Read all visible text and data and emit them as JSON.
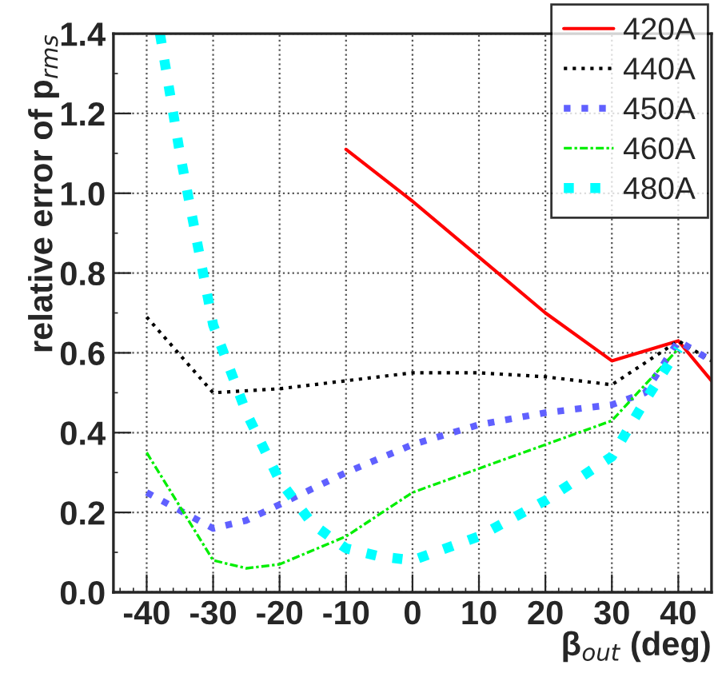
{
  "chart_data": {
    "type": "line",
    "xlabel": "β$_{out}$ (deg)",
    "ylabel": "relative error of p$_{rms}$",
    "xlim": [
      -45,
      45
    ],
    "ylim": [
      0,
      1.4
    ],
    "xticks": [
      -40,
      -30,
      -20,
      -10,
      0,
      10,
      20,
      30,
      40
    ],
    "yticks": [
      {
        "value": 0,
        "label": "0.0"
      },
      {
        "value": 0.2,
        "label": "0.2"
      },
      {
        "value": 0.4,
        "label": "0.4"
      },
      {
        "value": 0.6,
        "label": "0.6"
      },
      {
        "value": 0.8,
        "label": "0.8"
      },
      {
        "value": 1.0,
        "label": "1.0"
      },
      {
        "value": 1.2,
        "label": "1.2"
      },
      {
        "value": 1.4,
        "label": "1.4"
      }
    ],
    "grid": true,
    "legend": "top right",
    "marker": "none",
    "series": [
      {
        "name": "420A",
        "color": "#ff0000",
        "line_style": "solid",
        "x": [
          -10,
          0,
          10,
          20,
          30,
          40,
          45
        ],
        "values": [
          1.11,
          0.98,
          0.84,
          0.7,
          0.58,
          0.63,
          0.53
        ]
      },
      {
        "name": "440A",
        "color": "#000000",
        "line_style": "dotted",
        "x": [
          -40,
          -30,
          -20,
          -10,
          0,
          10,
          20,
          30,
          40,
          45
        ],
        "values": [
          0.69,
          0.5,
          0.51,
          0.53,
          0.55,
          0.55,
          0.54,
          0.52,
          0.63,
          0.58
        ]
      },
      {
        "name": "450A",
        "color": "#6060ff",
        "line_style": "dotted",
        "x": [
          -40,
          -30,
          -25,
          -20,
          -10,
          0,
          10,
          20,
          30,
          35,
          40,
          45
        ],
        "values": [
          0.25,
          0.16,
          0.18,
          0.22,
          0.3,
          0.37,
          0.42,
          0.45,
          0.47,
          0.5,
          0.63,
          0.58
        ]
      },
      {
        "name": "460A",
        "color": "#00ee00",
        "line_style": "dashed",
        "x": [
          -40,
          -30,
          -25,
          -20,
          -10,
          0,
          10,
          20,
          30,
          40
        ],
        "values": [
          0.35,
          0.08,
          0.06,
          0.07,
          0.14,
          0.25,
          0.31,
          0.37,
          0.43,
          0.61
        ]
      },
      {
        "name": "480A",
        "color": "#00ffff",
        "line_style": "dotted",
        "x": [
          -38,
          -35,
          -30,
          -25,
          -20,
          -15,
          -10,
          -5,
          0,
          10,
          20,
          30,
          35,
          40
        ],
        "values": [
          1.4,
          1.1,
          0.67,
          0.45,
          0.28,
          0.17,
          0.11,
          0.09,
          0.08,
          0.14,
          0.23,
          0.34,
          0.48,
          0.61
        ]
      }
    ]
  }
}
